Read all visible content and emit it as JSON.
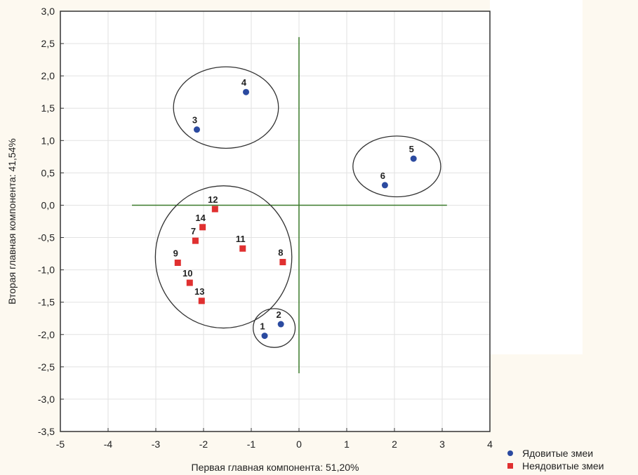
{
  "chart_data": {
    "type": "scatter",
    "xlabel": "Первая главная компонента: 51,20%",
    "ylabel": "Вторая главная компонента: 41,54%",
    "xlim": [
      -5,
      4
    ],
    "ylim": [
      -3.5,
      3.0
    ],
    "xticks": [
      "-5",
      "-4",
      "-3",
      "-2",
      "-1",
      "0",
      "1",
      "2",
      "3",
      "4"
    ],
    "yticks": [
      "3,0",
      "2,5",
      "2,0",
      "1,5",
      "1,0",
      "0,5",
      "0,0",
      "-0,5",
      "-1,0",
      "-1,5",
      "-2,0",
      "-2,5",
      "-3,0",
      "-3,5"
    ],
    "grid": true,
    "legend_position": "bottom-right",
    "series": [
      {
        "name": "Ядовитые змеи",
        "marker": "circle",
        "color": "#2b4aa0",
        "points": [
          {
            "label": "1",
            "x": -0.72,
            "y": -2.02
          },
          {
            "label": "2",
            "x": -0.38,
            "y": -1.84
          },
          {
            "label": "3",
            "x": -2.14,
            "y": 1.17
          },
          {
            "label": "4",
            "x": -1.11,
            "y": 1.75
          },
          {
            "label": "5",
            "x": 2.4,
            "y": 0.72
          },
          {
            "label": "6",
            "x": 1.8,
            "y": 0.31
          }
        ]
      },
      {
        "name": "Неядовитые змеи",
        "marker": "square",
        "color": "#e03030",
        "points": [
          {
            "label": "7",
            "x": -2.17,
            "y": -0.55
          },
          {
            "label": "8",
            "x": -0.34,
            "y": -0.88
          },
          {
            "label": "9",
            "x": -2.54,
            "y": -0.89
          },
          {
            "label": "10",
            "x": -2.29,
            "y": -1.2
          },
          {
            "label": "11",
            "x": -1.18,
            "y": -0.67
          },
          {
            "label": "12",
            "x": -1.76,
            "y": -0.06
          },
          {
            "label": "13",
            "x": -2.04,
            "y": -1.48
          },
          {
            "label": "14",
            "x": -2.02,
            "y": -0.34
          }
        ]
      }
    ],
    "reference_lines": {
      "color": "#3a7a2a",
      "horizontal": {
        "y": 0,
        "x_from": -3.5,
        "x_to": 3.1
      },
      "vertical": {
        "x": 0,
        "y_from": 2.6,
        "y_to": -2.6
      }
    },
    "cluster_ellipses": [
      {
        "cx": -1.53,
        "cy": 1.51,
        "rx": 1.1,
        "ry": 0.63
      },
      {
        "cx": 2.05,
        "cy": 0.6,
        "rx": 0.92,
        "ry": 0.47
      },
      {
        "cx": -1.58,
        "cy": -0.8,
        "rx": 1.43,
        "ry": 1.1
      },
      {
        "cx": -0.52,
        "cy": -1.9,
        "rx": 0.44,
        "ry": 0.3
      }
    ]
  }
}
